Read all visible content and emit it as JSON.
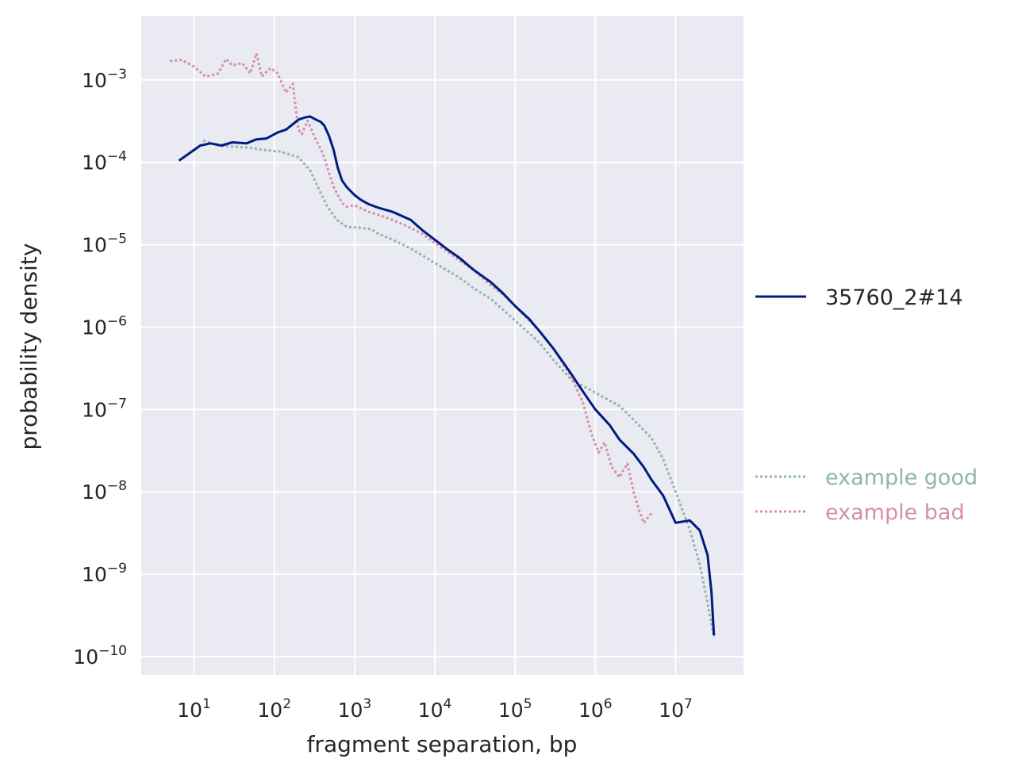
{
  "chart_data": {
    "type": "line",
    "title": "",
    "xlabel": "fragment separation, bp",
    "ylabel": "probability density",
    "xscale": "log",
    "yscale": "log",
    "xlim": [
      2.2,
      70000000
    ],
    "ylim": [
      6e-11,
      0.006
    ],
    "grid": true,
    "x_ticks": [
      {
        "base": "10",
        "exp": "1",
        "value": 10
      },
      {
        "base": "10",
        "exp": "2",
        "value": 100
      },
      {
        "base": "10",
        "exp": "3",
        "value": 1000
      },
      {
        "base": "10",
        "exp": "4",
        "value": 10000
      },
      {
        "base": "10",
        "exp": "5",
        "value": 100000
      },
      {
        "base": "10",
        "exp": "6",
        "value": 1000000
      },
      {
        "base": "10",
        "exp": "7",
        "value": 10000000
      }
    ],
    "y_ticks": [
      {
        "base": "10",
        "exp": "−3",
        "value": 0.001
      },
      {
        "base": "10",
        "exp": "−4",
        "value": 0.0001
      },
      {
        "base": "10",
        "exp": "−5",
        "value": 1e-05
      },
      {
        "base": "10",
        "exp": "−6",
        "value": 1e-06
      },
      {
        "base": "10",
        "exp": "−7",
        "value": 1e-07
      },
      {
        "base": "10",
        "exp": "−8",
        "value": 1e-08
      },
      {
        "base": "10",
        "exp": "−9",
        "value": 1e-09
      },
      {
        "base": "10",
        "exp": "−10",
        "value": 1e-10
      }
    ],
    "legend_placement": "right, outside plot",
    "series": [
      {
        "name": "35760_2#14",
        "color": "#001c7f",
        "style": "solid",
        "points": [
          [
            6.5,
            0.000105
          ],
          [
            12,
            0.00016
          ],
          [
            16,
            0.00017
          ],
          [
            22,
            0.00016
          ],
          [
            30,
            0.000175
          ],
          [
            45,
            0.00017
          ],
          [
            60,
            0.00019
          ],
          [
            80,
            0.000195
          ],
          [
            110,
            0.00023
          ],
          [
            140,
            0.00025
          ],
          [
            170,
            0.00029
          ],
          [
            200,
            0.00033
          ],
          [
            240,
            0.00035
          ],
          [
            280,
            0.00036
          ],
          [
            330,
            0.00033
          ],
          [
            380,
            0.00031
          ],
          [
            420,
            0.00028
          ],
          [
            480,
            0.00021
          ],
          [
            550,
            0.00014
          ],
          [
            620,
            8.5e-05
          ],
          [
            700,
            6e-05
          ],
          [
            800,
            5e-05
          ],
          [
            1000,
            4e-05
          ],
          [
            1200,
            3.5e-05
          ],
          [
            1500,
            3.1e-05
          ],
          [
            2000,
            2.8e-05
          ],
          [
            3000,
            2.5e-05
          ],
          [
            5000,
            2e-05
          ],
          [
            7000,
            1.5e-05
          ],
          [
            10000,
            1.15e-05
          ],
          [
            15000,
            8.5e-06
          ],
          [
            20000,
            7e-06
          ],
          [
            30000,
            5e-06
          ],
          [
            50000,
            3.5e-06
          ],
          [
            70000,
            2.6e-06
          ],
          [
            100000,
            1.8e-06
          ],
          [
            150000,
            1.25e-06
          ],
          [
            200000,
            9e-07
          ],
          [
            300000,
            5.5e-07
          ],
          [
            500000,
            2.7e-07
          ],
          [
            700000,
            1.65e-07
          ],
          [
            1000000,
            1e-07
          ],
          [
            1500000,
            6.5e-08
          ],
          [
            2000000,
            4.3e-08
          ],
          [
            3000000,
            2.9e-08
          ],
          [
            4000000,
            2e-08
          ],
          [
            5000000,
            1.4e-08
          ],
          [
            7000000,
            9e-09
          ],
          [
            10000000,
            4.2e-09
          ],
          [
            15000000,
            4.5e-09
          ],
          [
            20000000,
            3.4e-09
          ],
          [
            25000000,
            1.7e-09
          ],
          [
            28000000,
            6e-10
          ],
          [
            30000000,
            1.8e-10
          ]
        ]
      },
      {
        "name": "example good",
        "color": "#8fb5ad",
        "style": "dotted",
        "points": [
          [
            13,
            0.000185
          ],
          [
            20,
            0.00016
          ],
          [
            30,
            0.000155
          ],
          [
            50,
            0.00015
          ],
          [
            80,
            0.00014
          ],
          [
            120,
            0.000135
          ],
          [
            200,
            0.000115
          ],
          [
            280,
            8e-05
          ],
          [
            350,
            5e-05
          ],
          [
            450,
            3e-05
          ],
          [
            600,
            2e-05
          ],
          [
            800,
            1.65e-05
          ],
          [
            1200,
            1.6e-05
          ],
          [
            1600,
            1.55e-05
          ],
          [
            2000,
            1.35e-05
          ],
          [
            3000,
            1.15e-05
          ],
          [
            5000,
            9e-06
          ],
          [
            10000,
            6e-06
          ],
          [
            20000,
            4e-06
          ],
          [
            30000,
            3e-06
          ],
          [
            50000,
            2.2e-06
          ],
          [
            100000,
            1.2e-06
          ],
          [
            200000,
            6.5e-07
          ],
          [
            300000,
            4e-07
          ],
          [
            500000,
            2.3e-07
          ],
          [
            1000000,
            1.6e-07
          ],
          [
            2000000,
            1.1e-07
          ],
          [
            3000000,
            7.5e-08
          ],
          [
            5000000,
            4.5e-08
          ],
          [
            7000000,
            2.5e-08
          ],
          [
            10000000,
            1e-08
          ],
          [
            15000000,
            3.5e-09
          ],
          [
            20000000,
            1.3e-09
          ],
          [
            25000000,
            4.5e-10
          ],
          [
            30000000,
            1.7e-10
          ]
        ]
      },
      {
        "name": "example bad",
        "color": "#d48fac",
        "style": "dotted",
        "points": [
          [
            5,
            0.0017
          ],
          [
            7,
            0.00175
          ],
          [
            10,
            0.00145
          ],
          [
            14,
            0.0011
          ],
          [
            20,
            0.0012
          ],
          [
            25,
            0.0018
          ],
          [
            30,
            0.0015
          ],
          [
            40,
            0.0016
          ],
          [
            50,
            0.0012
          ],
          [
            60,
            0.0021
          ],
          [
            70,
            0.0011
          ],
          [
            90,
            0.0014
          ],
          [
            110,
            0.0012
          ],
          [
            140,
            0.0007
          ],
          [
            170,
            0.0009
          ],
          [
            200,
            0.00025
          ],
          [
            220,
            0.00022
          ],
          [
            260,
            0.00032
          ],
          [
            320,
            0.0002
          ],
          [
            400,
            0.00013
          ],
          [
            550,
            5e-05
          ],
          [
            700,
            3.2e-05
          ],
          [
            800,
            2.9e-05
          ],
          [
            1000,
            3e-05
          ],
          [
            1500,
            2.5e-05
          ],
          [
            2000,
            2.3e-05
          ],
          [
            3000,
            2e-05
          ],
          [
            5000,
            1.6e-05
          ],
          [
            7000,
            1.35e-05
          ],
          [
            10000,
            1.05e-05
          ],
          [
            15000,
            8e-06
          ],
          [
            20000,
            6.5e-06
          ],
          [
            30000,
            5e-06
          ],
          [
            50000,
            3.2e-06
          ],
          [
            70000,
            2.5e-06
          ],
          [
            100000,
            1.8e-06
          ],
          [
            150000,
            1.2e-06
          ],
          [
            200000,
            9e-07
          ],
          [
            300000,
            5.5e-07
          ],
          [
            500000,
            2.5e-07
          ],
          [
            700000,
            1.2e-07
          ],
          [
            900000,
            5e-08
          ],
          [
            1100000,
            3e-08
          ],
          [
            1300000,
            4e-08
          ],
          [
            1600000,
            2e-08
          ],
          [
            2000000,
            1.5e-08
          ],
          [
            2500000,
            2.2e-08
          ],
          [
            3000000,
            1e-08
          ],
          [
            3500000,
            6e-09
          ],
          [
            4000000,
            4.2e-09
          ],
          [
            5000000,
            5.5e-09
          ]
        ]
      }
    ]
  }
}
